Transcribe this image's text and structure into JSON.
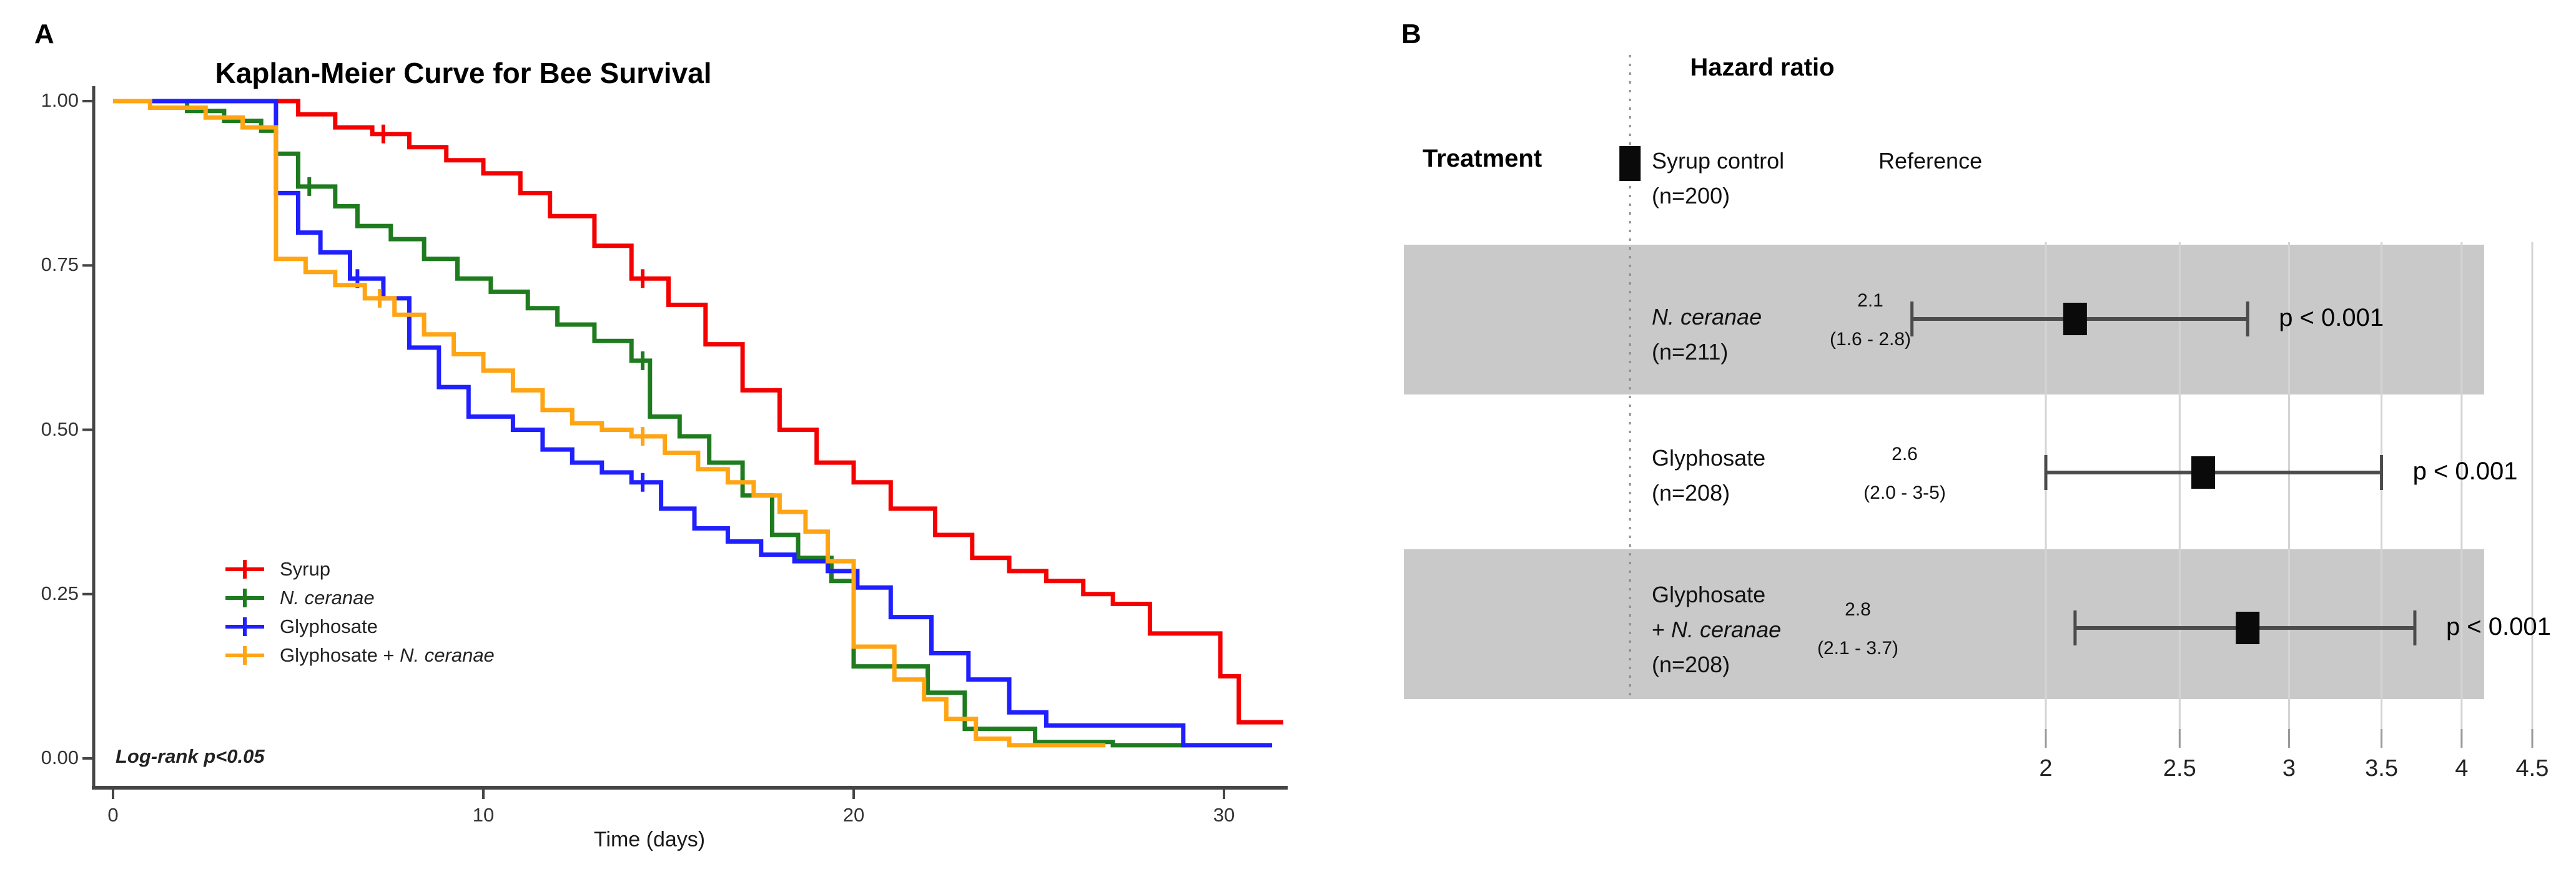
{
  "figure": {
    "panel_a_label": "A",
    "panel_b_label": "B",
    "background": "#ffffff",
    "band_color": "#c9c9c9",
    "axis_color": "#454545"
  },
  "chart_data": [
    {
      "type": "line",
      "subtype": "kaplan-meier-step",
      "title": "Kaplan-Meier Curve for Bee Survival",
      "xlabel": "Time (days)",
      "ylabel": "",
      "annotation": "Log-rank p<0.05",
      "xlim": [
        0,
        31.8
      ],
      "ylim": [
        0,
        1
      ],
      "grid": false,
      "x_ticks": [
        0,
        10,
        20,
        30
      ],
      "x_tick_labels": [
        "0",
        "10",
        "20",
        "30"
      ],
      "y_ticks": [
        1.0,
        0.75,
        0.5,
        0.25,
        0.0
      ],
      "y_tick_labels": [
        "1.00",
        "0.75",
        "0.50",
        "0.25",
        "0.00"
      ],
      "legend_position": "inside-left-lower",
      "series": [
        {
          "name": "Syrup",
          "label_prefix": "Syrup",
          "label_italic": "",
          "color": "#f40000",
          "steps": [
            [
              0,
              1
            ],
            [
              5,
              0.98
            ],
            [
              6,
              0.96
            ],
            [
              7,
              0.95
            ],
            [
              8,
              0.93
            ],
            [
              9,
              0.91
            ],
            [
              10,
              0.89
            ],
            [
              11,
              0.86
            ],
            [
              11.8,
              0.825
            ],
            [
              13,
              0.78
            ],
            [
              14,
              0.73
            ],
            [
              15,
              0.69
            ],
            [
              16,
              0.63
            ],
            [
              17,
              0.56
            ],
            [
              18,
              0.5
            ],
            [
              19,
              0.45
            ],
            [
              20,
              0.42
            ],
            [
              21,
              0.38
            ],
            [
              22.2,
              0.34
            ],
            [
              23.2,
              0.305
            ],
            [
              24.2,
              0.285
            ],
            [
              25.2,
              0.27
            ],
            [
              26.2,
              0.25
            ],
            [
              27,
              0.235
            ],
            [
              28,
              0.19
            ],
            [
              29.9,
              0.125
            ],
            [
              30.4,
              0.055
            ],
            [
              31.6,
              0.055
            ]
          ],
          "censor_marks": [
            [
              7.3,
              0.95
            ],
            [
              14.3,
              0.73
            ]
          ]
        },
        {
          "name": "N. ceranae",
          "label_prefix": "",
          "label_italic": "N. ceranae",
          "color": "#1e7b1e",
          "steps": [
            [
              0,
              1
            ],
            [
              2,
              0.985
            ],
            [
              3,
              0.97
            ],
            [
              4,
              0.955
            ],
            [
              4.4,
              0.92
            ],
            [
              5,
              0.87
            ],
            [
              6,
              0.84
            ],
            [
              6.6,
              0.81
            ],
            [
              7.5,
              0.79
            ],
            [
              8.4,
              0.76
            ],
            [
              9.3,
              0.73
            ],
            [
              10.2,
              0.71
            ],
            [
              11.2,
              0.685
            ],
            [
              12,
              0.66
            ],
            [
              13,
              0.635
            ],
            [
              14,
              0.605
            ],
            [
              14.5,
              0.52
            ],
            [
              15.3,
              0.49
            ],
            [
              16.1,
              0.45
            ],
            [
              17,
              0.4
            ],
            [
              17.8,
              0.34
            ],
            [
              18.5,
              0.305
            ],
            [
              19.4,
              0.27
            ],
            [
              20,
              0.14
            ],
            [
              22,
              0.1
            ],
            [
              23,
              0.045
            ],
            [
              24.9,
              0.025
            ],
            [
              27,
              0.02
            ],
            [
              29,
              0.02
            ]
          ],
          "censor_marks": [
            [
              5.3,
              0.87
            ],
            [
              14.3,
              0.605
            ]
          ]
        },
        {
          "name": "Glyphosate",
          "label_prefix": "Glyphosate",
          "label_italic": "",
          "color": "#1f1fff",
          "steps": [
            [
              0,
              1
            ],
            [
              4.4,
              0.86
            ],
            [
              5,
              0.8
            ],
            [
              5.6,
              0.77
            ],
            [
              6.4,
              0.73
            ],
            [
              7.3,
              0.7
            ],
            [
              8,
              0.625
            ],
            [
              8.8,
              0.565
            ],
            [
              9.6,
              0.52
            ],
            [
              10.8,
              0.5
            ],
            [
              11.6,
              0.47
            ],
            [
              12.4,
              0.45
            ],
            [
              13.2,
              0.435
            ],
            [
              14,
              0.42
            ],
            [
              14.8,
              0.38
            ],
            [
              15.7,
              0.35
            ],
            [
              16.6,
              0.33
            ],
            [
              17.5,
              0.31
            ],
            [
              18.4,
              0.3
            ],
            [
              19.3,
              0.285
            ],
            [
              20.1,
              0.26
            ],
            [
              21,
              0.215
            ],
            [
              22.1,
              0.16
            ],
            [
              23.1,
              0.12
            ],
            [
              24.2,
              0.07
            ],
            [
              25.2,
              0.05
            ],
            [
              28.9,
              0.02
            ],
            [
              31.3,
              0.02
            ]
          ],
          "censor_marks": [
            [
              6.6,
              0.73
            ],
            [
              14.3,
              0.42
            ]
          ]
        },
        {
          "name": "Glyphosate + N. ceranae",
          "label_prefix": "Glyphosate + ",
          "label_italic": "N. ceranae",
          "color": "#ffa413",
          "steps": [
            [
              0,
              1
            ],
            [
              1,
              0.99
            ],
            [
              2.5,
              0.975
            ],
            [
              3.5,
              0.96
            ],
            [
              4.4,
              0.76
            ],
            [
              5.2,
              0.74
            ],
            [
              6,
              0.72
            ],
            [
              6.8,
              0.7
            ],
            [
              7.6,
              0.675
            ],
            [
              8.4,
              0.645
            ],
            [
              9.2,
              0.615
            ],
            [
              10,
              0.59
            ],
            [
              10.8,
              0.56
            ],
            [
              11.6,
              0.53
            ],
            [
              12.4,
              0.51
            ],
            [
              13.2,
              0.5
            ],
            [
              14,
              0.49
            ],
            [
              14.9,
              0.465
            ],
            [
              15.8,
              0.44
            ],
            [
              16.6,
              0.42
            ],
            [
              17.3,
              0.4
            ],
            [
              18,
              0.375
            ],
            [
              18.7,
              0.345
            ],
            [
              19.3,
              0.3
            ],
            [
              20,
              0.17
            ],
            [
              21.1,
              0.12
            ],
            [
              21.9,
              0.09
            ],
            [
              22.5,
              0.06
            ],
            [
              23.3,
              0.03
            ],
            [
              24.2,
              0.02
            ],
            [
              26.8,
              0.02
            ]
          ],
          "censor_marks": [
            [
              7.2,
              0.7
            ],
            [
              14.3,
              0.49
            ]
          ]
        }
      ]
    },
    {
      "type": "forest",
      "title": "Hazard ratio",
      "column_header": "Treatment",
      "x_scale": "log",
      "x_ticks": [
        2,
        2.5,
        3,
        3.5,
        4,
        4.5
      ],
      "x_tick_labels": [
        "2",
        "2.5",
        "3",
        "3.5",
        "4",
        "4.5"
      ],
      "reference_line": 1.0,
      "rows": [
        {
          "label1": "Syrup control",
          "label1_italic": "",
          "label2": "(n=200)",
          "label2_prefix": "",
          "label2_italic": "",
          "label3": "",
          "value_label": "Reference",
          "hr": 1.0,
          "ci": null,
          "hr_label": "",
          "ci_label": "",
          "p_label": "",
          "shaded": false
        },
        {
          "label1": "",
          "label1_italic": "N. ceranae",
          "label2": "(n=211)",
          "label2_prefix": "",
          "label2_italic": "",
          "label3": "",
          "value_label": "",
          "hr": 2.1,
          "ci": [
            1.6,
            2.8
          ],
          "hr_label": "2.1",
          "ci_label": "(1.6 - 2.8)",
          "p_label": "p < 0.001",
          "shaded": true
        },
        {
          "label1": "Glyphosate",
          "label1_italic": "",
          "label2": "(n=208)",
          "label2_prefix": "",
          "label2_italic": "",
          "label3": "",
          "value_label": "",
          "hr": 2.6,
          "ci": [
            2.0,
            3.5
          ],
          "hr_label": "2.6",
          "ci_label": "(2.0 - 3-5)",
          "p_label": "p < 0.001",
          "shaded": false
        },
        {
          "label1": "Glyphosate",
          "label1_italic": "",
          "label2": "",
          "label2_prefix": "+ ",
          "label2_italic": "N. ceranae",
          "label3": "(n=208)",
          "value_label": "",
          "hr": 2.8,
          "ci": [
            2.1,
            3.7
          ],
          "hr_label": "2.8",
          "ci_label": "(2.1 - 3.7)",
          "p_label": "p < 0.001",
          "shaded": true
        }
      ]
    }
  ]
}
